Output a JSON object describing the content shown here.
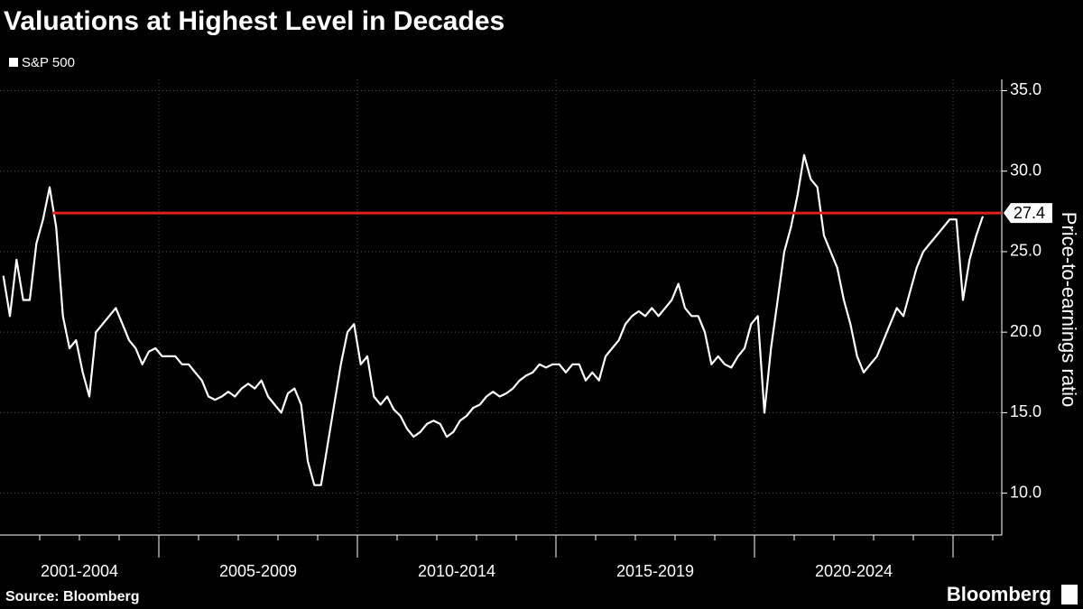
{
  "chart_data": {
    "type": "line",
    "title": "Valuations at Highest Level in Decades",
    "series_name": "S&P 500",
    "color": "#ffffff",
    "y_label": "Price-to-earnings ratio",
    "source": "Source: Bloomberg",
    "brand": "Bloomberg",
    "reference_line": {
      "value": 27.4,
      "color": "#e0201b"
    },
    "ylim": [
      7.4,
      35.7
    ],
    "yticks": [
      {
        "value": 10,
        "label": "10.0"
      },
      {
        "value": 15,
        "label": "15.0"
      },
      {
        "value": 20,
        "label": "20.0"
      },
      {
        "value": 25,
        "label": "25.0"
      },
      {
        "value": 30,
        "label": "30.0"
      },
      {
        "value": 35,
        "label": "35.0"
      }
    ],
    "grid": true,
    "periods": [
      {
        "label": "2001-2004",
        "values": [
          23.5,
          21,
          24.5,
          22,
          22,
          25.5,
          27,
          29,
          26.5,
          21,
          19,
          19.5,
          17.5,
          16,
          20,
          20.5,
          21,
          21.5,
          20.5,
          19.5,
          19,
          18,
          18.8,
          19
        ]
      },
      {
        "label": "2005-2009",
        "values": [
          18.5,
          18.5,
          18.5,
          18,
          18,
          17.5,
          17,
          16,
          15.8,
          16,
          16.3,
          16,
          16.5,
          16.8,
          16.5,
          17,
          16,
          15.5,
          15,
          16.2,
          16.5,
          15.5,
          12,
          10.5,
          10.5,
          13,
          15.5,
          18,
          20,
          20.5
        ]
      },
      {
        "label": "2010-2014",
        "values": [
          18,
          18.5,
          16,
          15.5,
          16,
          15.2,
          14.8,
          14,
          13.5,
          13.8,
          14.3,
          14.5,
          14.3,
          13.5,
          13.8,
          14.5,
          14.8,
          15.3,
          15.5,
          16,
          16.3,
          16,
          16.2,
          16.5,
          17,
          17.3,
          17.5,
          18,
          17.8,
          18
        ]
      },
      {
        "label": "2015-2019",
        "values": [
          18,
          17.5,
          18,
          18,
          17,
          17.5,
          17,
          18.5,
          19,
          19.5,
          20.5,
          21,
          21.3,
          21,
          21.5,
          21,
          21.5,
          22,
          23,
          21.5,
          21,
          21,
          20,
          18,
          18.5,
          18,
          17.8,
          18.5,
          19,
          20.5
        ]
      },
      {
        "label": "2020-2024",
        "values": [
          21,
          15,
          19,
          22,
          25,
          26.5,
          28.5,
          31,
          29.5,
          29,
          26,
          25,
          24,
          22,
          20.5,
          18.5,
          17.5,
          18,
          18.5,
          19.5,
          20.5,
          21.5,
          21,
          22.5,
          24,
          25,
          25.5,
          26,
          26.5,
          27
        ]
      },
      {
        "label": null,
        "values": [
          27,
          22,
          24.5,
          26,
          27.2
        ]
      }
    ]
  }
}
